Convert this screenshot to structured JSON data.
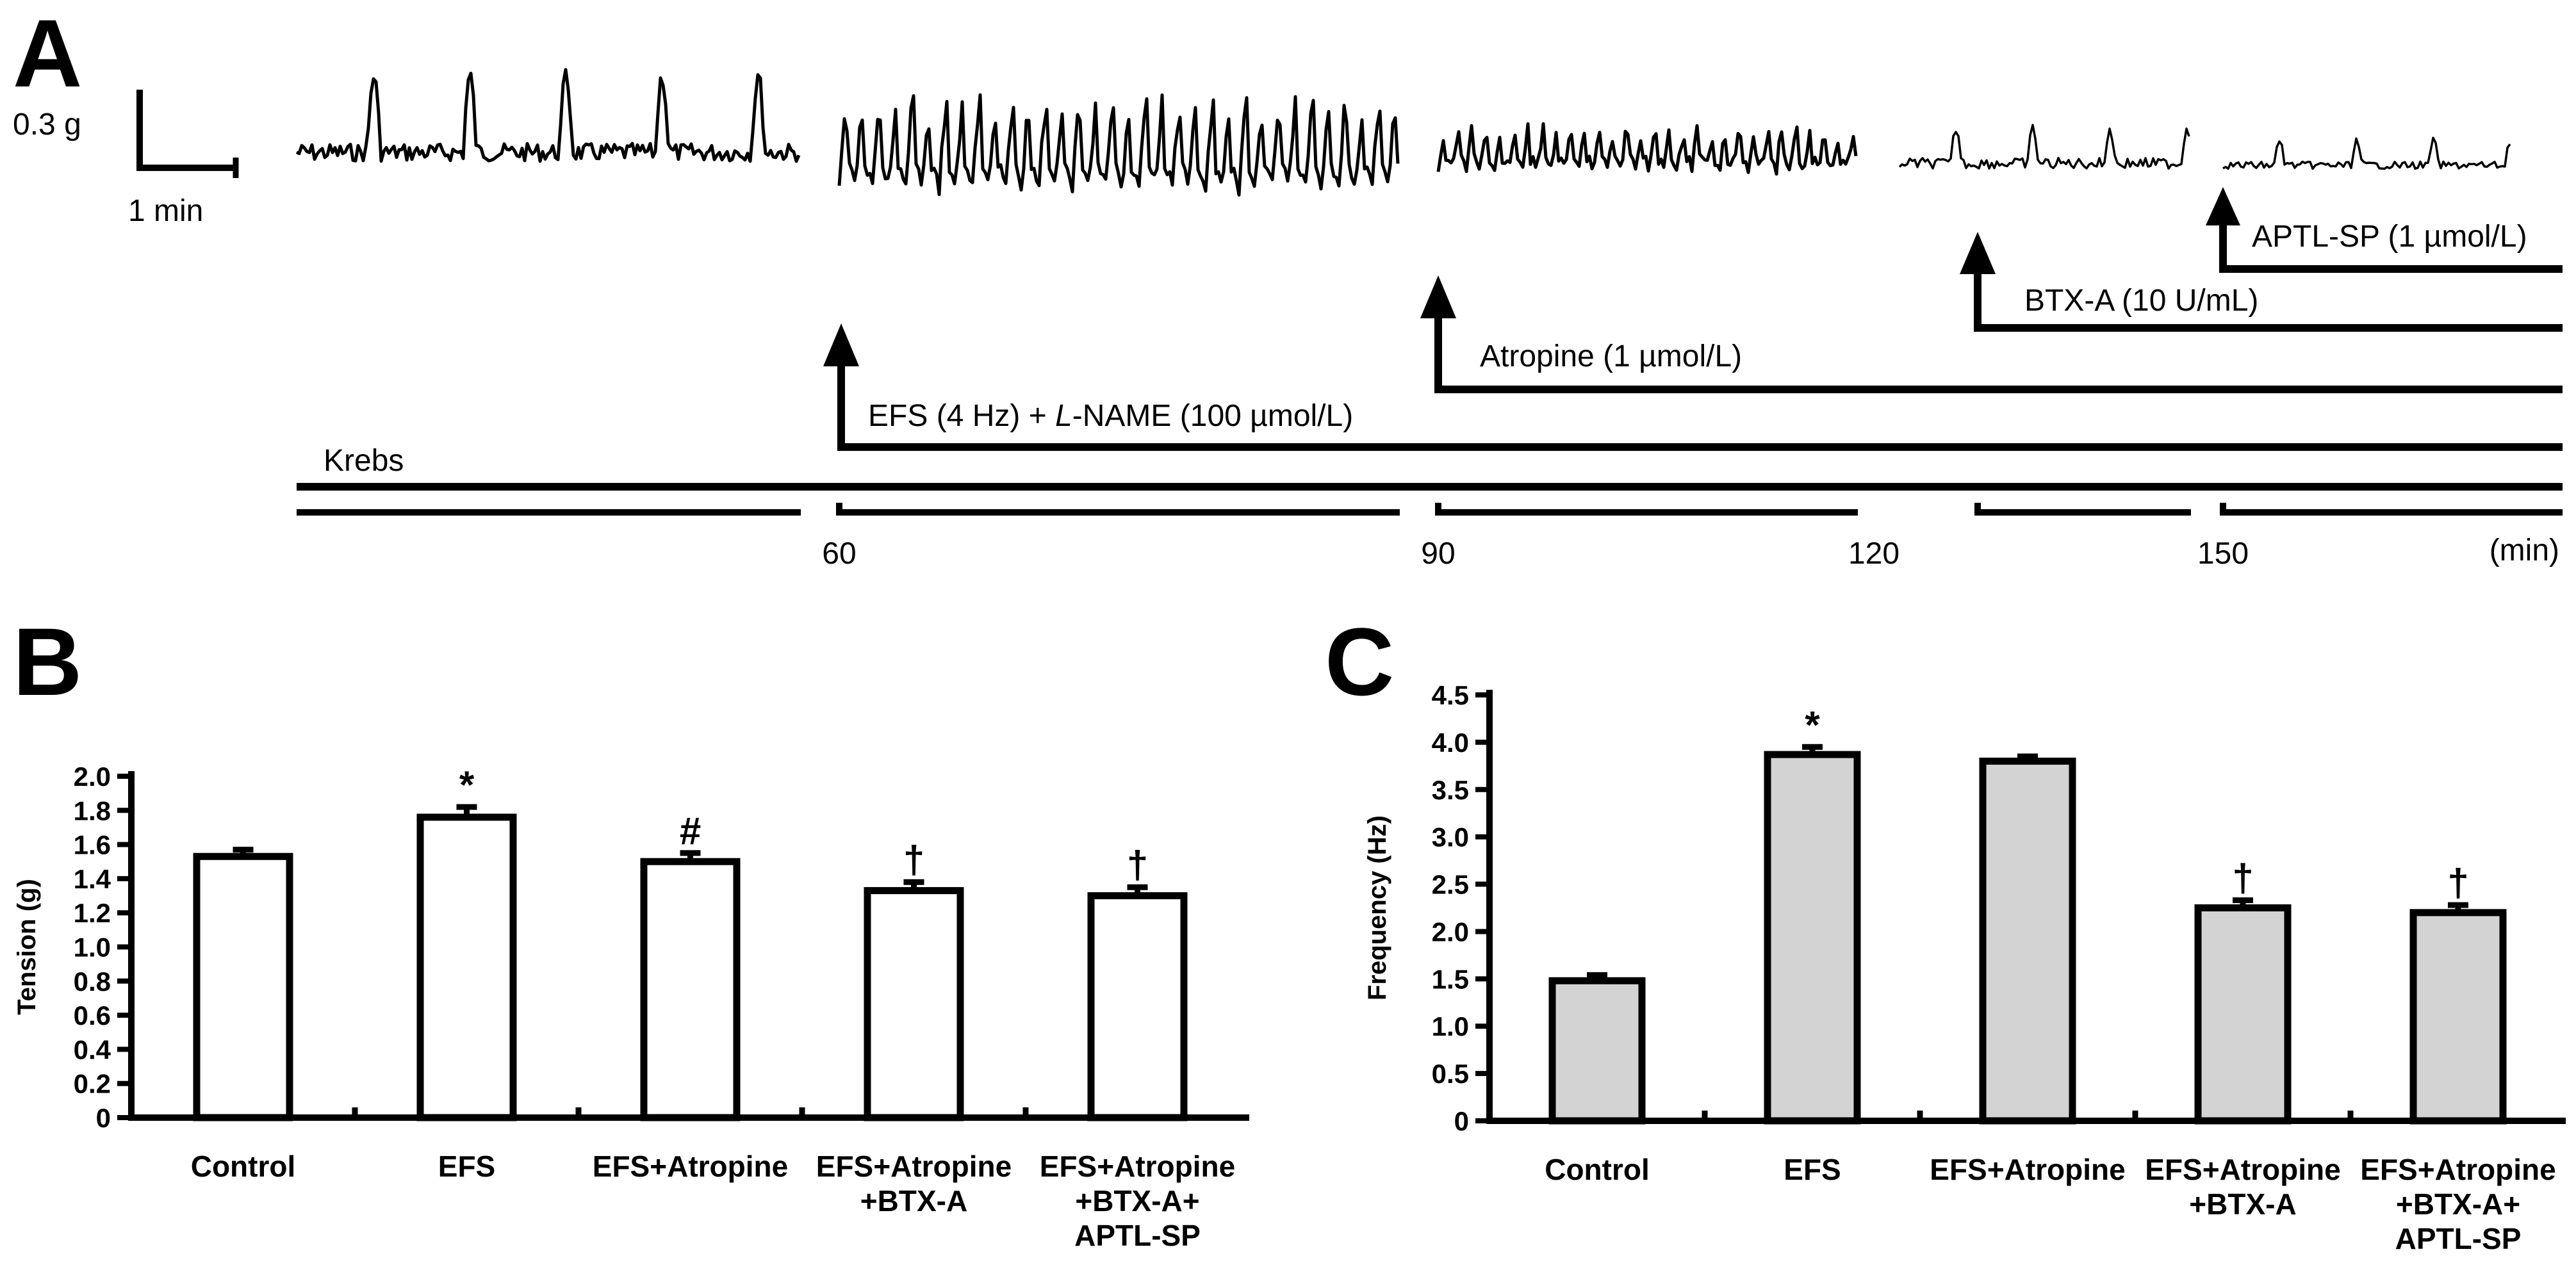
{
  "panel_a": {
    "letter": "A",
    "scale_bar": {
      "vertical": "0.3 g",
      "horizontal": "1 min"
    },
    "time_axis": {
      "ticks": [
        "60",
        "90",
        "120",
        "150"
      ],
      "unit": "(min)"
    },
    "treatments": [
      {
        "label": "Krebs"
      },
      {
        "label_parts": [
          "EFS (4 Hz) + ",
          "L",
          "-NAME (100 µmol/L)"
        ]
      },
      {
        "label": "Atropine (1 µmol/L)"
      },
      {
        "label": "BTX-A (10 U/mL)"
      },
      {
        "label": "APTL-SP (1 µmol/L)"
      }
    ]
  },
  "chart_data": [
    {
      "panel": "B",
      "type": "bar",
      "ylabel": "Tension (g)",
      "ylim": [
        0,
        2.0
      ],
      "yticks": [
        "0",
        "0.2",
        "0.4",
        "0.6",
        "0.8",
        "1.0",
        "1.2",
        "1.4",
        "1.6",
        "1.8",
        "2.0"
      ],
      "categories": [
        [
          "Control"
        ],
        [
          "EFS"
        ],
        [
          "EFS+Atropine"
        ],
        [
          "EFS+Atropine",
          "+BTX-A"
        ],
        [
          "EFS+Atropine",
          "+BTX-A+",
          "APTL-SP"
        ]
      ],
      "values": [
        1.53,
        1.76,
        1.5,
        1.33,
        1.3
      ],
      "errors": [
        0.04,
        0.06,
        0.05,
        0.05,
        0.05
      ],
      "annotations": [
        "",
        "*",
        "#",
        "†",
        "†"
      ],
      "bar_color": "#ffffff"
    },
    {
      "panel": "C",
      "type": "bar",
      "ylabel": "Frequency (Hz)",
      "ylim": [
        0,
        4.5
      ],
      "yticks": [
        "0",
        "0.5",
        "1.0",
        "1.5",
        "2.0",
        "2.5",
        "3.0",
        "3.5",
        "4.0",
        "4.5"
      ],
      "categories": [
        [
          "Control"
        ],
        [
          "EFS"
        ],
        [
          "EFS+Atropine"
        ],
        [
          "EFS+Atropine",
          "+BTX-A"
        ],
        [
          "EFS+Atropine",
          "+BTX-A+",
          "APTL-SP"
        ]
      ],
      "values": [
        1.48,
        3.87,
        3.8,
        2.25,
        2.2
      ],
      "errors": [
        0.06,
        0.08,
        0.05,
        0.08,
        0.08
      ],
      "annotations": [
        "",
        "*",
        "",
        "†",
        "†"
      ],
      "bar_color": "#d3d3d3"
    }
  ]
}
